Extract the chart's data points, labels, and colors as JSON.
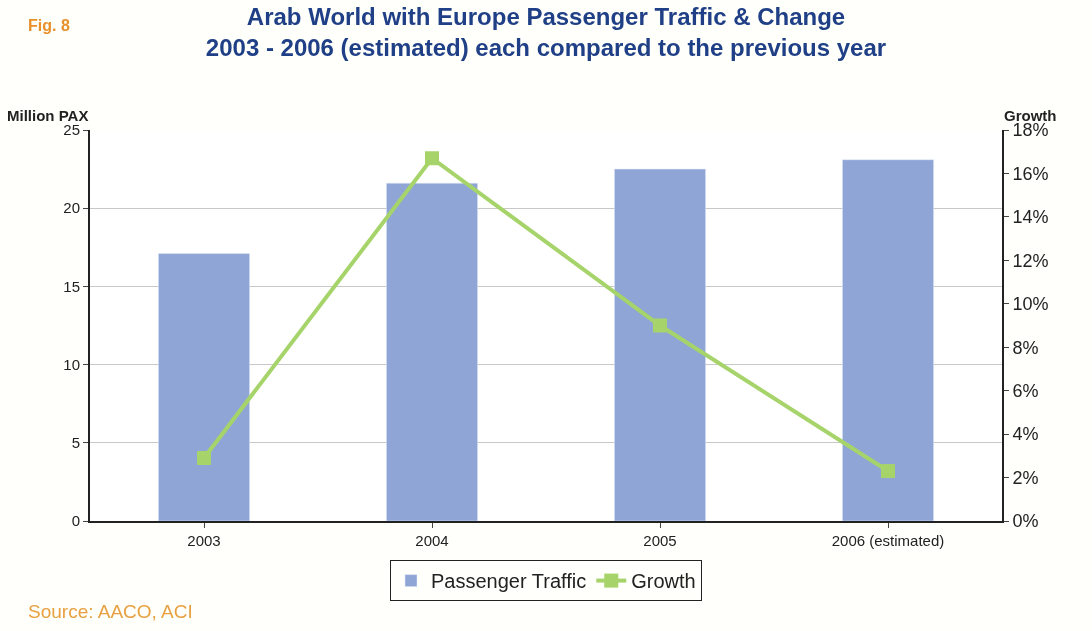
{
  "chart_data": {
    "type": "bar",
    "title": "Arab World with Europe Passenger Traffic & Change",
    "subtitle": "2003 - 2006 (estimated) each compared to the previous year",
    "ylabel": "Million PAX",
    "y2label": "Growth",
    "categories": [
      "2003",
      "2004",
      "2005",
      "2006 (estimated)"
    ],
    "series": [
      {
        "name": "Passenger Traffic",
        "color": "#8ea5d6",
        "values": [
          17.1,
          21.6,
          22.5,
          23.1
        ]
      },
      {
        "name": "Growth",
        "type": "line",
        "axis": "y2",
        "color": "#a6d46a",
        "marker": "square",
        "line_style": "solid",
        "values": [
          2.9,
          16.7,
          9.0,
          2.3
        ]
      }
    ],
    "ylim": [
      0,
      25
    ],
    "yticks": [
      0,
      5,
      10,
      15,
      20,
      25
    ],
    "y2lim": [
      0,
      18
    ],
    "y2ticks": [
      {
        "value": 0,
        "label": "0%"
      },
      {
        "value": 2,
        "label": "2%"
      },
      {
        "value": 4,
        "label": "4%"
      },
      {
        "value": 6,
        "label": "6%"
      },
      {
        "value": 8,
        "label": "8%"
      },
      {
        "value": 10,
        "label": "10%"
      },
      {
        "value": 12,
        "label": "12%"
      },
      {
        "value": 14,
        "label": "14%"
      },
      {
        "value": 16,
        "label": "16%"
      },
      {
        "value": 18,
        "label": "18%"
      }
    ],
    "grid": "y",
    "legend": "bottom",
    "annotations": [
      "Fig. 8",
      "Source: AACO, ACI"
    ]
  }
}
